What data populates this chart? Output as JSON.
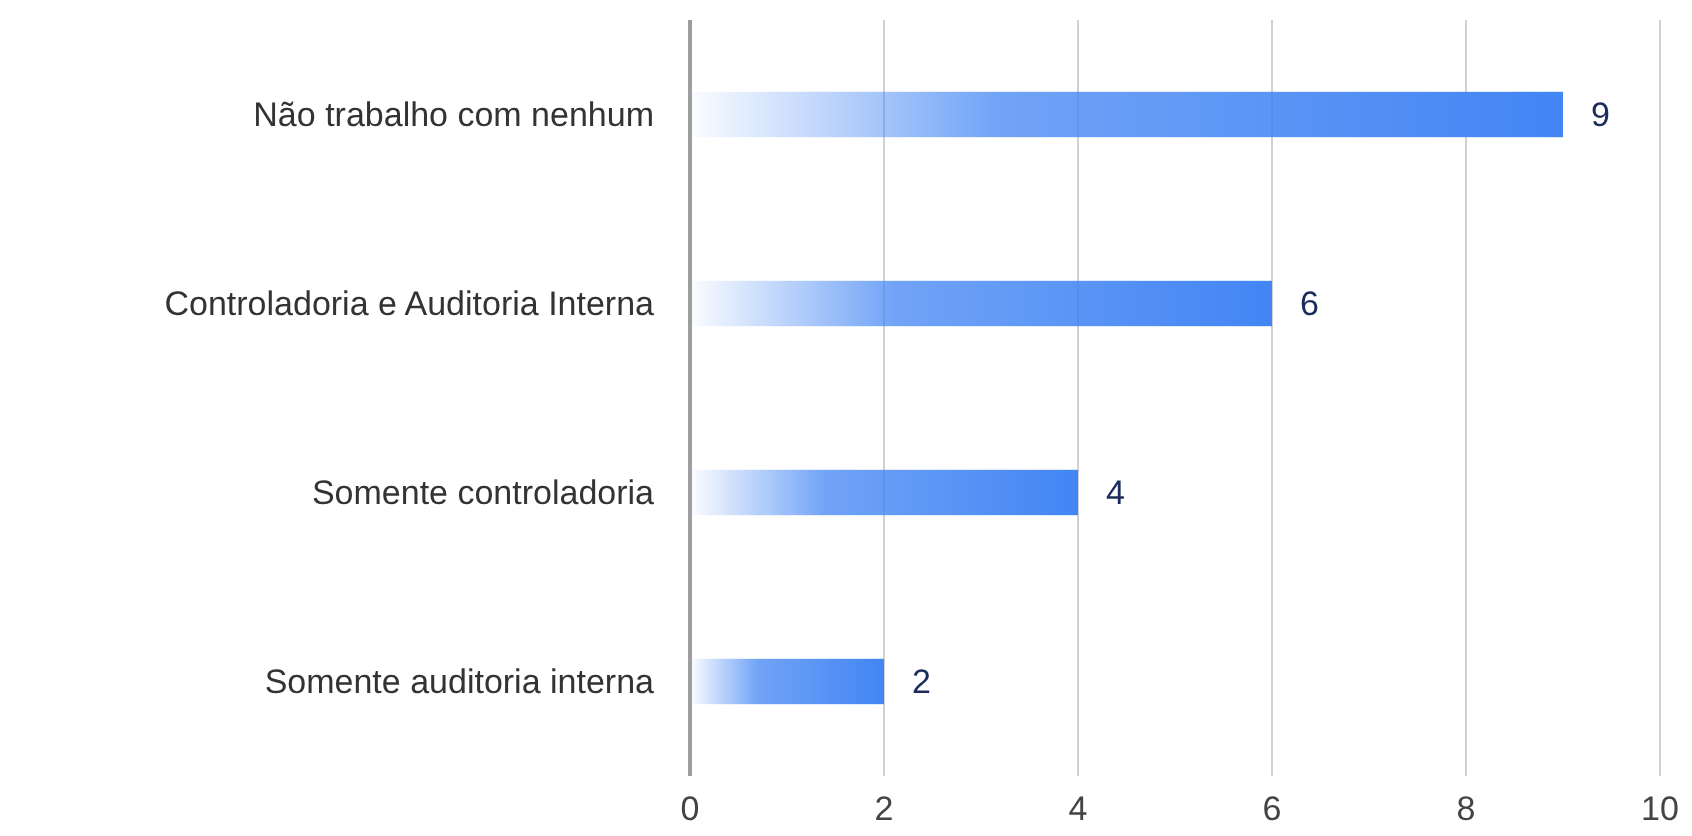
{
  "chart_data": {
    "type": "bar",
    "orientation": "horizontal",
    "categories": [
      "Não trabalho com nenhum",
      "Controladoria e Auditoria Interna",
      "Somente controladoria",
      "Somente auditoria interna"
    ],
    "values": [
      9,
      6,
      4,
      2
    ],
    "color": "#4285f4",
    "xlim": [
      0,
      10
    ],
    "xticks": [
      0,
      2,
      4,
      6,
      8,
      10
    ],
    "grid": "x",
    "data_labels": true
  }
}
